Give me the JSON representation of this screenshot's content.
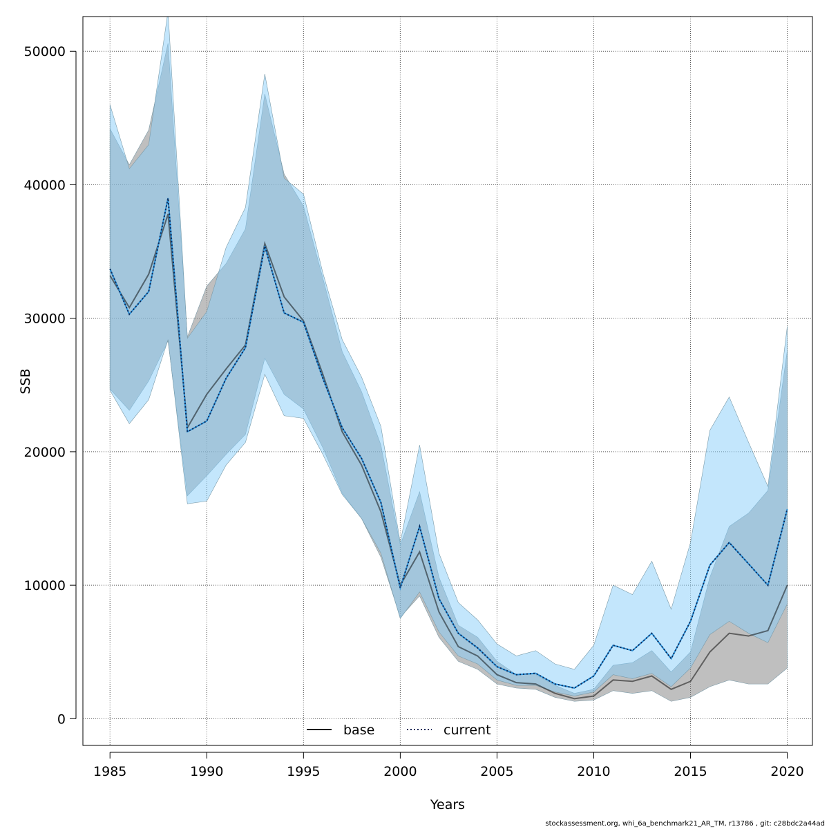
{
  "chart_data": {
    "type": "line",
    "xlabel": "Years",
    "ylabel": "SSB",
    "xlim": [
      1983.6,
      2021.3
    ],
    "ylim": [
      -2000,
      52600
    ],
    "xticks": [
      1985,
      1990,
      1995,
      2000,
      2005,
      2010,
      2015,
      2020
    ],
    "yticks": [
      0,
      10000,
      20000,
      30000,
      40000,
      50000
    ],
    "grid": true,
    "legend_position": "bottom-center",
    "x": [
      1985,
      1986,
      1987,
      1988,
      1989,
      1990,
      1991,
      1992,
      1993,
      1994,
      1995,
      1996,
      1997,
      1998,
      1999,
      2000,
      2001,
      2002,
      2003,
      2004,
      2005,
      2006,
      2007,
      2008,
      2009,
      2010,
      2011,
      2012,
      2013,
      2014,
      2015,
      2016,
      2017,
      2018,
      2019,
      2020
    ],
    "series": [
      {
        "name": "base",
        "line_style": "solid",
        "line_color": "#000000",
        "band_color": "#808080",
        "values": [
          33200,
          30800,
          33300,
          37800,
          21800,
          24300,
          26200,
          28000,
          35600,
          31600,
          29800,
          25800,
          21500,
          19000,
          15500,
          10000,
          12500,
          8000,
          5400,
          4700,
          3300,
          2700,
          2600,
          1900,
          1500,
          1700,
          2900,
          2800,
          3200,
          2200,
          2800,
          5000,
          6400,
          6200,
          6600,
          10000
        ],
        "lower": [
          24700,
          23100,
          25300,
          28300,
          16700,
          18200,
          19800,
          21300,
          27000,
          24300,
          23200,
          20300,
          16900,
          15000,
          12100,
          7600,
          9200,
          6100,
          4300,
          3700,
          2600,
          2300,
          2200,
          1600,
          1300,
          1400,
          2100,
          1900,
          2100,
          1300,
          1600,
          2400,
          2900,
          2600,
          2600,
          3800
        ],
        "upper": [
          44200,
          41500,
          44100,
          50600,
          28600,
          32400,
          34100,
          36700,
          46800,
          40800,
          38400,
          33000,
          27500,
          24500,
          20500,
          13000,
          17000,
          10600,
          7000,
          6100,
          4300,
          3300,
          3300,
          2500,
          1900,
          2200,
          4000,
          4200,
          5100,
          3500,
          5000,
          10600,
          14400,
          15400,
          17100,
          27600
        ]
      },
      {
        "name": "current",
        "line_style": "dotted",
        "line_color": "#0a2a5a",
        "band_color": "#87cefa",
        "values": [
          33700,
          30300,
          32000,
          39000,
          21500,
          22300,
          25500,
          27800,
          35400,
          30400,
          29700,
          25500,
          21800,
          19500,
          16200,
          9800,
          14400,
          9000,
          6400,
          5300,
          3900,
          3300,
          3400,
          2600,
          2300,
          3200,
          5500,
          5100,
          6400,
          4500,
          7300,
          11500,
          13200,
          11600,
          10000,
          15700
        ],
        "lower": [
          24600,
          22100,
          23900,
          28400,
          16100,
          16300,
          19000,
          20700,
          25800,
          22700,
          22500,
          19800,
          16800,
          15000,
          12400,
          7500,
          9500,
          6500,
          4700,
          4100,
          2900,
          2500,
          2500,
          2000,
          1700,
          2000,
          3300,
          3000,
          3400,
          2400,
          3800,
          6300,
          7300,
          6400,
          5700,
          8600
        ],
        "upper": [
          46000,
          41200,
          43000,
          53000,
          28500,
          30500,
          35300,
          38300,
          48300,
          40500,
          39300,
          33400,
          28400,
          25600,
          21900,
          13200,
          20500,
          12400,
          8700,
          7400,
          5600,
          4700,
          5100,
          4100,
          3700,
          5500,
          10000,
          9300,
          11800,
          8200,
          13200,
          21600,
          24100,
          20700,
          17400,
          29400
        ]
      }
    ]
  },
  "footer_text": "stockassessment.org, whi_6a_benchmark21_AR_TM, r13786 , git: c28bdc2a44ad"
}
